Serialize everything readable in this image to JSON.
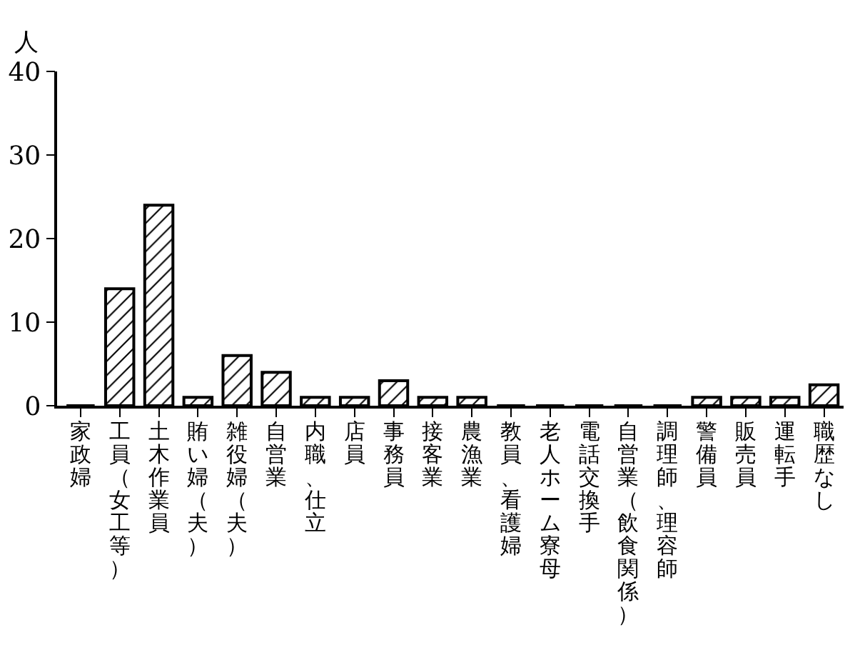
{
  "chart_data": {
    "type": "bar",
    "ylabel": "人",
    "categories": [
      "家政婦",
      "工員（女工等）",
      "土木作業員",
      "賄い婦（夫）",
      "雑役婦（夫）",
      "自営業",
      "内職、仕立",
      "店員",
      "事務員",
      "接客業",
      "農漁業",
      "教員、看護婦",
      "老人ホーム寮母",
      "電話交換手",
      "自営業（飲食関係）",
      "調理師、理容師",
      "警備員",
      "販売員",
      "運転手",
      "職歴なし"
    ],
    "values": [
      0,
      14,
      24,
      1,
      6,
      4,
      1,
      1,
      3,
      1,
      1,
      0,
      0,
      0,
      0,
      0,
      1,
      1,
      1,
      2.5
    ],
    "color": "#000000",
    "ylim": [
      0,
      40
    ],
    "yticks": [
      0,
      10,
      20,
      30,
      40
    ]
  }
}
